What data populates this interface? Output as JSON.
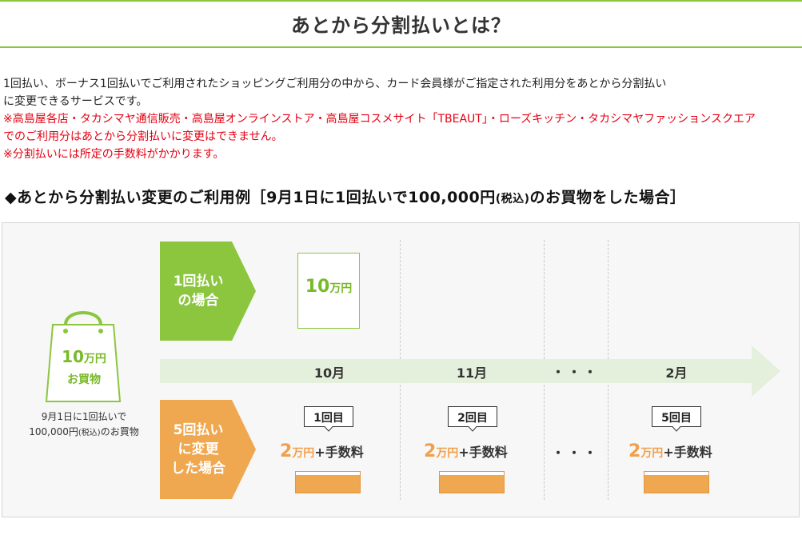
{
  "title": "あとから分割払いとは？",
  "intro": {
    "line1": "1回払い、ボーナス1回払いでご利用されたショッピングご利用分の中から、カード会員様がご指定された利用分をあとから分割払い",
    "line2": "に変更できるサービスです。",
    "note1_line1": "※高島屋各店・タカシマヤ通信販売・高島屋オンラインストア・高島屋コスメサイト「TBEAUT」・ローズキッチン・タカシマヤファッションスクエア",
    "note1_line2": "でのご利用分はあとから分割払いに変更はできません。",
    "note2": "※分割払いには所定の手数料がかかります。"
  },
  "section": {
    "heading_main": "◆あとから分割払い変更のご利用例［9月1日に1回払いで100,000円",
    "heading_small": "(税込)",
    "heading_tail": "のお買物をした場合］"
  },
  "bag": {
    "amount": "10",
    "unit": "万円",
    "label": "お買物",
    "caption_line1": "9月1日に1回払いで",
    "caption_line2a": "100,000円",
    "caption_line2b": "(税込)",
    "caption_line2c": "のお買物"
  },
  "single": {
    "label_line1": "1回払い",
    "label_line2": "の場合",
    "amount": "10",
    "unit": "万円"
  },
  "timeline": {
    "months": [
      "10月",
      "11月",
      "2月"
    ],
    "ellipsis": "・・・"
  },
  "installments": {
    "label_line1": "5回払い",
    "label_line2": "に変更",
    "label_line3": "した場合",
    "items": [
      {
        "count": "1回目",
        "amount": "2",
        "unit": "万円",
        "fee": "+手数料"
      },
      {
        "count": "2回目",
        "amount": "2",
        "unit": "万円",
        "fee": "+手数料"
      },
      {
        "count": "5回目",
        "amount": "2",
        "unit": "万円",
        "fee": "+手数料"
      }
    ],
    "ellipsis": "・・・"
  },
  "colors": {
    "green": "#8cc63f",
    "orange": "#f0a850",
    "red": "#e60012"
  }
}
